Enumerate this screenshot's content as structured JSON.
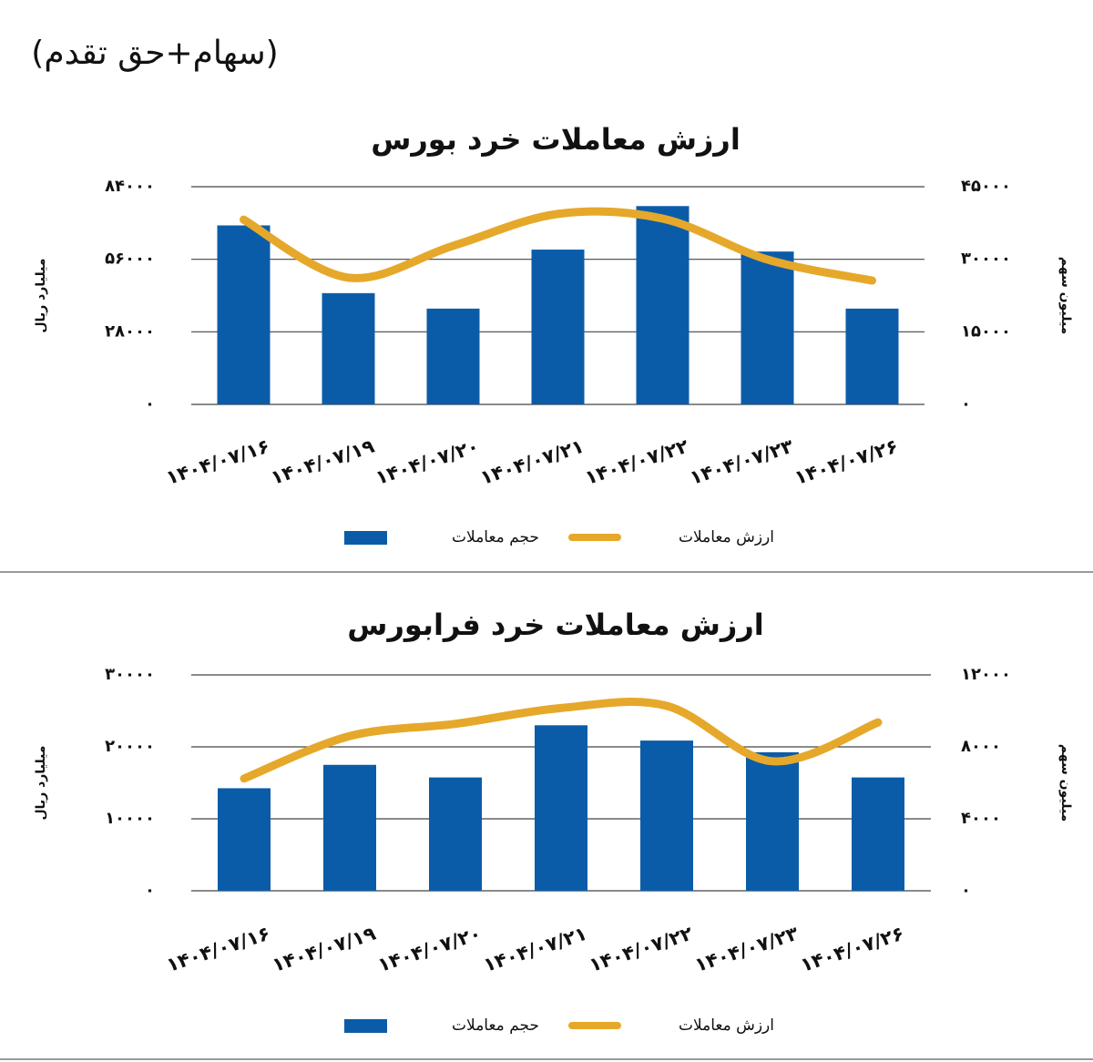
{
  "header": {
    "title": "(سهام+حق تقدم)"
  },
  "chart_data": [
    {
      "type": "combo",
      "title": "ارزش معاملات خرد بورس",
      "y_label": "میلیارد ریال",
      "y2_label": "میلیون سهم",
      "categories": [
        "۱۴۰۴/۰۷/۱۶",
        "۱۴۰۴/۰۷/۱۹",
        "۱۴۰۴/۰۷/۲۰",
        "۱۴۰۴/۰۷/۲۱",
        "۱۴۰۴/۰۷/۲۲",
        "۱۴۰۴/۰۷/۲۳",
        "۱۴۰۴/۰۷/۲۶"
      ],
      "series": [
        {
          "name": "حجم معاملات",
          "type": "bar",
          "axis": "y2",
          "color": "#0b5ca8",
          "values": [
            37000,
            23000,
            19800,
            32000,
            41000,
            31600,
            19800
          ]
        },
        {
          "name": "ارزش معاملات",
          "type": "line",
          "color": "#e6a82a",
          "values": [
            71300,
            48900,
            61200,
            73500,
            71700,
            55900,
            47800
          ]
        }
      ],
      "ylim": [
        0,
        84000
      ],
      "yticks": [
        {
          "value": 0,
          "label": "۰"
        },
        {
          "value": 28000,
          "label": "۲۸۰۰۰"
        },
        {
          "value": 56000,
          "label": "۵۶۰۰۰"
        },
        {
          "value": 84000,
          "label": "۸۴۰۰۰"
        }
      ],
      "y2lim": [
        0,
        45000
      ],
      "y2ticks": [
        {
          "value": 0,
          "label": "۰"
        },
        {
          "value": 15000,
          "label": "۱۵۰۰۰"
        },
        {
          "value": 30000,
          "label": "۳۰۰۰۰"
        },
        {
          "value": 45000,
          "label": "۴۵۰۰۰"
        }
      ],
      "grid": true,
      "legend": "bottom"
    },
    {
      "type": "combo",
      "title": "ارزش معاملات خرد فرابورس",
      "y_label": "میلیارد ریال",
      "y2_label": "میلیون سهم",
      "categories": [
        "۱۴۰۴/۰۷/۱۶",
        "۱۴۰۴/۰۷/۱۹",
        "۱۴۰۴/۰۷/۲۰",
        "۱۴۰۴/۰۷/۲۱",
        "۱۴۰۴/۰۷/۲۲",
        "۱۴۰۴/۰۷/۲۳",
        "۱۴۰۴/۰۷/۲۶"
      ],
      "series": [
        {
          "name": "حجم معاملات",
          "type": "bar",
          "axis": "y2",
          "color": "#0b5ca8",
          "values": [
            5700,
            7000,
            6300,
            9200,
            8350,
            7700,
            6300
          ]
        },
        {
          "name": "ارزش معاملات",
          "type": "line",
          "color": "#e6a82a",
          "values": [
            15600,
            21500,
            23200,
            25400,
            25700,
            18000,
            23400
          ]
        }
      ],
      "ylim": [
        0,
        30000
      ],
      "yticks": [
        {
          "value": 0,
          "label": "۰"
        },
        {
          "value": 10000,
          "label": "۱۰۰۰۰"
        },
        {
          "value": 20000,
          "label": "۲۰۰۰۰"
        },
        {
          "value": 30000,
          "label": "۳۰۰۰۰"
        }
      ],
      "y2lim": [
        0,
        12000
      ],
      "y2ticks": [
        {
          "value": 0,
          "label": "۰"
        },
        {
          "value": 4000,
          "label": "۴۰۰۰"
        },
        {
          "value": 8000,
          "label": "۸۰۰۰"
        },
        {
          "value": 12000,
          "label": "۱۲۰۰۰"
        }
      ],
      "grid": true,
      "legend": "bottom"
    }
  ]
}
